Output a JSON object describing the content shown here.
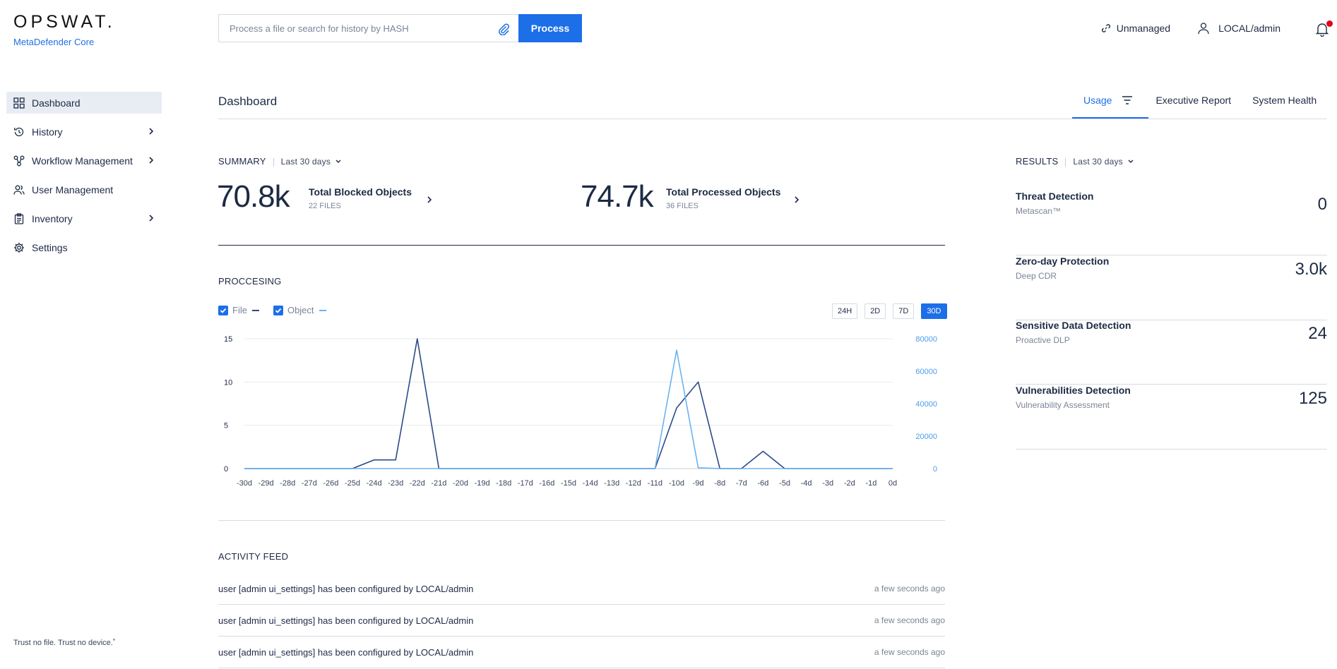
{
  "brand": {
    "name": "OPSWAT.",
    "product": "MetaDefender Core",
    "tagline": "Trust no file. Trust no device.˚"
  },
  "sidebar": {
    "items": [
      {
        "label": "Dashboard",
        "icon": "dashboard-grid-icon",
        "active": true
      },
      {
        "label": "History",
        "icon": "history-icon",
        "expandable": true
      },
      {
        "label": "Workflow Management",
        "icon": "workflow-icon",
        "expandable": true
      },
      {
        "label": "User Management",
        "icon": "users-icon"
      },
      {
        "label": "Inventory",
        "icon": "clipboard-icon",
        "expandable": true
      },
      {
        "label": "Settings",
        "icon": "gear-icon"
      }
    ]
  },
  "topbar": {
    "search_placeholder": "Process a file or search for history by HASH",
    "process_label": "Process",
    "unmanaged_label": "Unmanaged",
    "user_label": "LOCAL/admin"
  },
  "page": {
    "title": "Dashboard",
    "tabs": [
      {
        "label": "Usage",
        "active": true
      },
      {
        "label": "Executive Report"
      },
      {
        "label": "System Health"
      }
    ]
  },
  "summary": {
    "label": "SUMMARY",
    "range": "Last 30 days",
    "blocked": {
      "value": "70.8k",
      "title": "Total Blocked Objects",
      "sub": "22 FILES"
    },
    "processed": {
      "value": "74.7k",
      "title": "Total Processed Objects",
      "sub": "36 FILES"
    }
  },
  "processing": {
    "label": "PROCCESING",
    "legend": [
      {
        "name": "File",
        "color": "#2b4a8a"
      },
      {
        "name": "Object",
        "color": "#6ab3f0"
      }
    ],
    "ranges": [
      "24H",
      "2D",
      "7D",
      "30D"
    ],
    "active_range": "30D"
  },
  "chart_data": {
    "type": "line",
    "x": [
      "-30d",
      "-29d",
      "-28d",
      "-27d",
      "-26d",
      "-25d",
      "-24d",
      "-23d",
      "-22d",
      "-21d",
      "-20d",
      "-19d",
      "-18d",
      "-17d",
      "-16d",
      "-15d",
      "-14d",
      "-13d",
      "-12d",
      "-11d",
      "-10d",
      "-9d",
      "-8d",
      "-7d",
      "-6d",
      "-5d",
      "-4d",
      "-3d",
      "-2d",
      "-1d",
      "0d"
    ],
    "series": [
      {
        "name": "File",
        "axis": "left",
        "color": "#2b4a8a",
        "values": [
          0,
          0,
          0,
          0,
          0,
          0,
          1,
          1,
          15,
          0,
          0,
          0,
          0,
          0,
          0,
          0,
          0,
          0,
          0,
          0,
          7,
          10,
          0,
          0,
          2,
          0,
          0,
          0,
          0,
          0,
          0
        ]
      },
      {
        "name": "Object",
        "axis": "right",
        "color": "#6ab3f0",
        "values": [
          0,
          0,
          0,
          0,
          0,
          0,
          0,
          0,
          0,
          0,
          0,
          0,
          0,
          0,
          0,
          0,
          0,
          0,
          0,
          0,
          73000,
          500,
          0,
          0,
          0,
          0,
          0,
          0,
          0,
          0,
          0
        ]
      }
    ],
    "y_left": {
      "ticks": [
        0,
        5,
        10,
        15
      ],
      "lim": [
        0,
        15
      ]
    },
    "y_right": {
      "ticks": [
        0,
        20000,
        40000,
        60000,
        80000
      ],
      "lim": [
        0,
        80000
      ]
    },
    "grid": true
  },
  "feed": {
    "label": "ACTIVITY FEED",
    "rows": [
      {
        "subject": "user [admin ui_settings]",
        "middle": " has been configured by ",
        "actor": "LOCAL/admin",
        "time": "a few seconds ago"
      },
      {
        "subject": "user [admin ui_settings]",
        "middle": " has been configured by ",
        "actor": "LOCAL/admin",
        "time": "a few seconds ago"
      },
      {
        "subject": "user [admin ui_settings]",
        "middle": " has been configured by ",
        "actor": "LOCAL/admin",
        "time": "a few seconds ago"
      }
    ]
  },
  "results": {
    "label": "RESULTS",
    "range": "Last 30 days",
    "items": [
      {
        "title": "Threat Detection",
        "sub": "Metascan™",
        "value": "0"
      },
      {
        "title": "Zero-day Protection",
        "sub": "Deep CDR",
        "value": "3.0k"
      },
      {
        "title": "Sensitive Data Detection",
        "sub": "Proactive DLP",
        "value": "24"
      },
      {
        "title": "Vulnerabilities Detection",
        "sub": "Vulnerability Assessment",
        "value": "125"
      }
    ]
  },
  "colors": {
    "accent": "#1d6fe8",
    "text": "#1d2a44",
    "muted": "#7b8497",
    "notification": "#e4001b"
  }
}
